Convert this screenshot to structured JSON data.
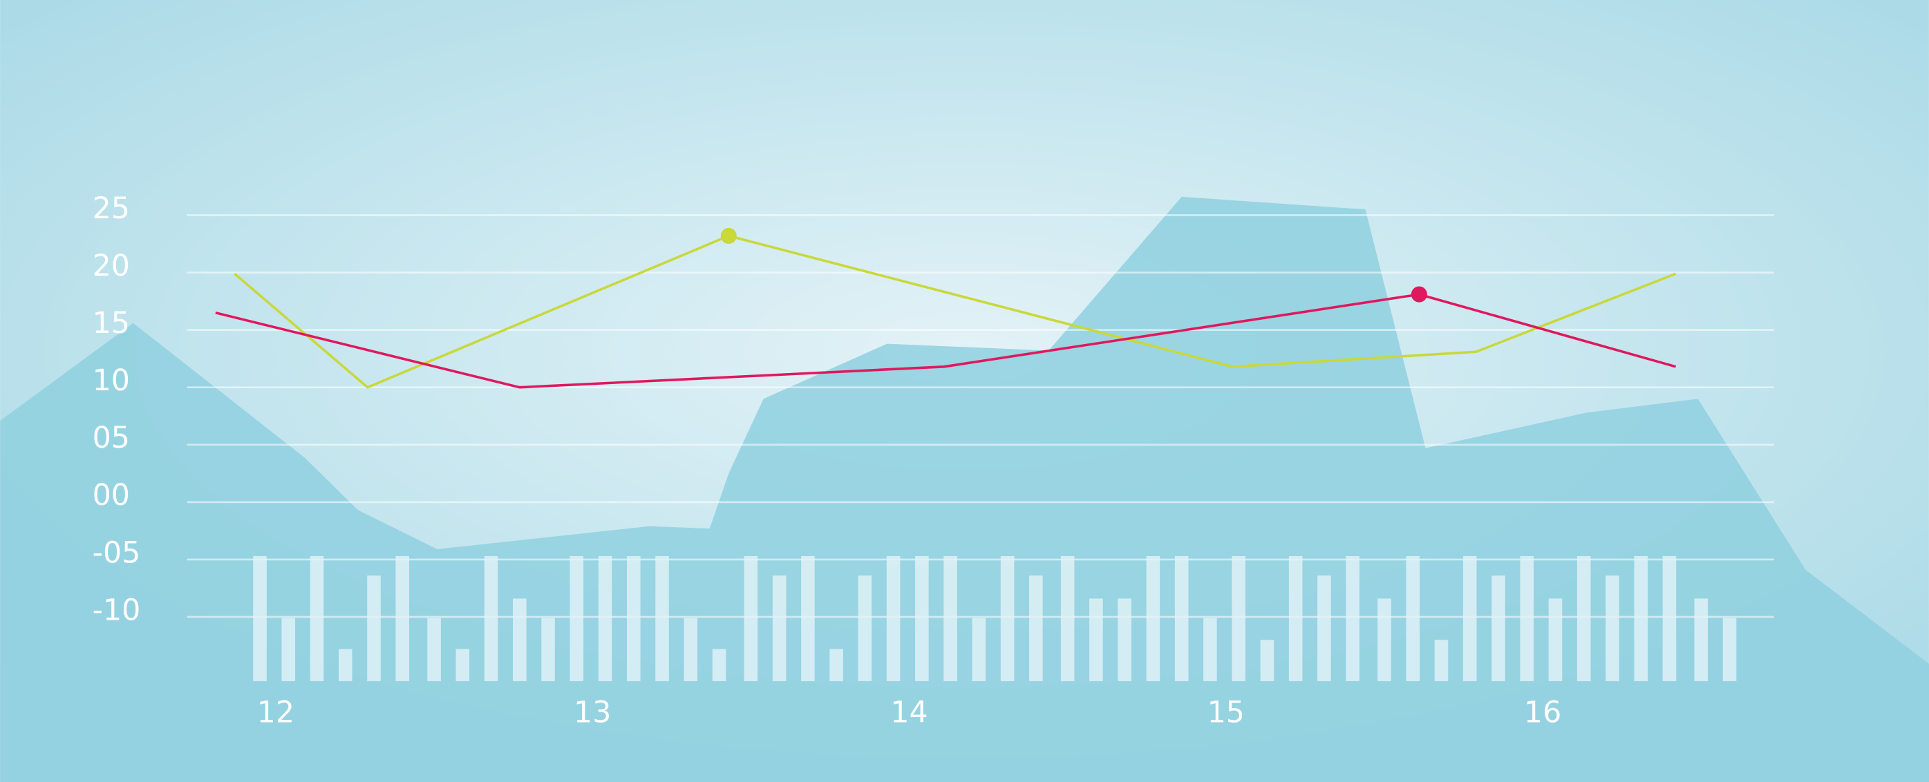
{
  "chart_data": {
    "type": "line",
    "xlim": [
      11.72,
      16.73
    ],
    "xticks": [
      12,
      13,
      14,
      15,
      16
    ],
    "ylim": [
      -15.6,
      25
    ],
    "yticks": [
      25,
      20,
      15,
      10,
      {
        "value": 5,
        "label": "05"
      },
      {
        "value": 0,
        "label": "00"
      },
      {
        "value": -5,
        "label": "-05"
      },
      -10
    ],
    "grid": true,
    "series": [
      {
        "type": "area",
        "color": "#8fd0df",
        "x": [
          11.13,
          11.55,
          12.09,
          12.26,
          12.51,
          13.18,
          13.37,
          13.43,
          13.54,
          13.93,
          14.44,
          14.86,
          15.44,
          15.63,
          16.14,
          16.49,
          16.83,
          17.22
        ],
        "values": [
          7.1,
          15.6,
          3.9,
          -0.7,
          -4.1,
          -2.1,
          -2.3,
          2.5,
          9.0,
          13.8,
          13.2,
          26.6,
          25.5,
          4.7,
          7.8,
          9.0,
          -5.9,
          -14.1
        ]
      },
      {
        "type": "bar",
        "color": "#e4f3f7",
        "x": [
          11.95,
          12.04,
          12.13,
          12.22,
          12.31,
          12.4,
          12.5,
          12.59,
          12.68,
          12.77,
          12.86,
          12.95,
          13.04,
          13.13,
          13.22,
          13.31,
          13.4,
          13.5,
          13.59,
          13.68,
          13.77,
          13.86,
          13.95,
          14.04,
          14.13,
          14.22,
          14.31,
          14.4,
          14.5,
          14.59,
          14.68,
          14.77,
          14.86,
          14.95,
          15.04,
          15.13,
          15.22,
          15.31,
          15.4,
          15.5,
          15.59,
          15.68,
          15.77,
          15.86,
          15.95,
          16.04,
          16.13,
          16.22,
          16.31,
          16.4,
          16.5,
          16.59
        ],
        "values": [
          -4.7,
          -10.1,
          -4.7,
          -12.8,
          -6.4,
          -4.7,
          -10.1,
          -12.8,
          -4.7,
          -8.4,
          -10.1,
          -4.7,
          -4.7,
          -4.7,
          -4.7,
          -10.1,
          -12.8,
          -4.7,
          -6.4,
          -4.7,
          -12.8,
          -6.4,
          -4.7,
          -4.7,
          -4.7,
          -10.1,
          -4.7,
          -6.4,
          -4.7,
          -8.4,
          -8.4,
          -4.7,
          -4.7,
          -10.1,
          -4.7,
          -12.0,
          -4.7,
          -6.4,
          -4.7,
          -8.4,
          -4.7,
          -12.0,
          -4.7,
          -6.4,
          -4.7,
          -8.4,
          -4.7,
          -6.4,
          -4.7,
          -4.7,
          -8.4,
          -10.1
        ]
      },
      {
        "type": "line",
        "color": "#c9d83a",
        "highlight": 2,
        "x": [
          11.87,
          12.29,
          13.43,
          15.02,
          15.79,
          16.42
        ],
        "values": [
          19.9,
          10.0,
          23.2,
          11.8,
          13.1,
          19.9
        ]
      },
      {
        "type": "line",
        "color": "#e0185e",
        "highlight": 3,
        "x": [
          11.81,
          12.77,
          14.11,
          15.61,
          16.42
        ],
        "values": [
          16.5,
          10.0,
          11.8,
          18.1,
          11.8
        ]
      }
    ]
  }
}
